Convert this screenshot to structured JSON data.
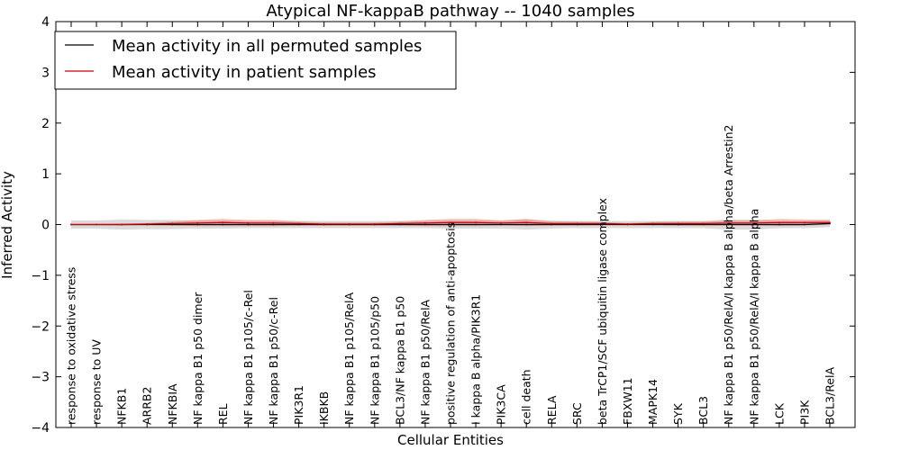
{
  "chart_data": {
    "type": "line",
    "title": "Atypical NF-kappaB pathway -- 1040 samples",
    "xlabel": "Cellular Entities",
    "ylabel": "Inferred Activity",
    "ylim": [
      -4,
      4
    ],
    "yticks": [
      -4,
      -3,
      -2,
      -1,
      0,
      1,
      2,
      3,
      4
    ],
    "ytick_labels": [
      "−4",
      "−3",
      "−2",
      "−1",
      "0",
      "1",
      "2",
      "3",
      "4"
    ],
    "legend_position": "top-left",
    "categories": [
      "response to oxidative stress",
      "response to UV",
      "NFKB1",
      "ARRB2",
      "NFKBIA",
      "NF kappa B1 p50 dimer",
      "REL",
      "NF kappa B1 p105/c-Rel",
      "NF kappa B1 p50/c-Rel",
      "PIK3R1",
      "IKBKB",
      "NF kappa B1 p105/RelA",
      "NF kappa B1 p105/p50",
      "BCL3/NF kappa B1 p50",
      "NF kappa B1 p50/RelA",
      "positive regulation of anti-apoptosis",
      "I kappa B alpha/PIK3R1",
      "PIK3CA",
      "cell death",
      "RELA",
      "SRC",
      "beta TrCP1/SCF ubiquitin ligase complex",
      "FBXW11",
      "MAPK14",
      "SYK",
      "BCL3",
      "NF kappa B1 p50/RelA/I kappa B alpha/beta Arrestin2",
      "NF kappa B1 p50/RelA/I kappa B alpha",
      "LCK",
      "PI3K",
      "BCL3/RelA"
    ],
    "series": [
      {
        "name": "Mean activity in all permuted samples",
        "color": "#000000",
        "values": [
          0,
          0,
          0,
          0,
          0,
          0,
          0,
          0,
          0,
          0,
          0,
          0,
          0,
          0,
          0,
          0,
          0,
          0,
          0,
          0,
          0,
          0,
          0,
          0,
          0,
          0,
          0,
          0,
          0,
          0,
          0.02
        ],
        "band": [
          0.08,
          0.08,
          0.1,
          0.09,
          0.09,
          0.08,
          0.08,
          0.07,
          0.07,
          0.07,
          0.07,
          0.07,
          0.07,
          0.07,
          0.07,
          0.08,
          0.08,
          0.08,
          0.1,
          0.08,
          0.07,
          0.07,
          0.07,
          0.07,
          0.07,
          0.07,
          0.1,
          0.1,
          0.07,
          0.07,
          0.07
        ],
        "band_color": "#b0b0b0"
      },
      {
        "name": "Mean activity in patient samples",
        "color": "#cc0000",
        "values": [
          0,
          0,
          0,
          0.01,
          0.02,
          0.03,
          0.04,
          0.03,
          0.03,
          0.02,
          0.01,
          0.01,
          0.01,
          0.02,
          0.03,
          0.04,
          0.04,
          0.03,
          0.04,
          0.02,
          0.02,
          0.02,
          0.01,
          0.02,
          0.02,
          0.02,
          0.03,
          0.03,
          0.04,
          0.04,
          0.04
        ],
        "band": [
          0.01,
          0.01,
          0.02,
          0.02,
          0.04,
          0.06,
          0.07,
          0.06,
          0.06,
          0.04,
          0.03,
          0.03,
          0.03,
          0.04,
          0.06,
          0.07,
          0.07,
          0.05,
          0.07,
          0.04,
          0.04,
          0.03,
          0.02,
          0.03,
          0.04,
          0.04,
          0.05,
          0.05,
          0.07,
          0.06,
          0.05
        ],
        "band_color": "#e06060"
      }
    ]
  }
}
